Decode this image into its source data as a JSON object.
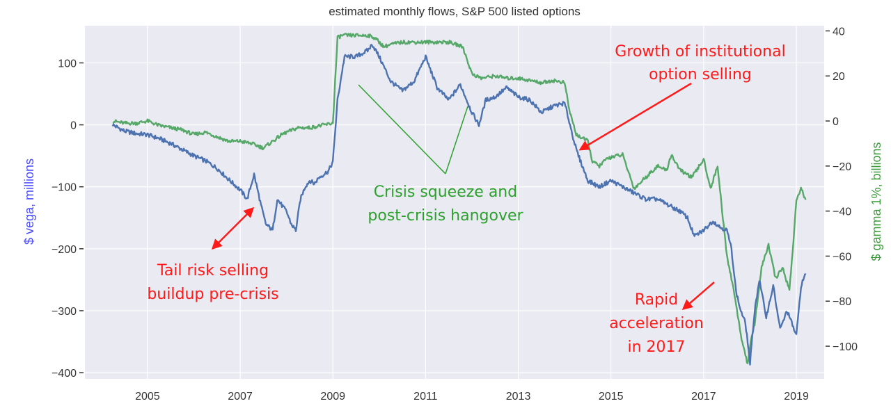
{
  "chart_data": {
    "type": "line",
    "title": "estimated monthly flows, S&P 500 listed options",
    "ylabel_left": "$ vega, millions",
    "ylabel_right": "$ gamma 1%, billions",
    "colors": {
      "vega": "#4c72b0",
      "gamma": "#55a868",
      "annotation_red": "#ff1a1a",
      "annotation_green": "#2ca02c",
      "plot_bg": "#eaeaf2"
    },
    "xlim": [
      2003.65,
      2019.6
    ],
    "ylim_left": [
      -410,
      160
    ],
    "ylim_right": [
      -114.5,
      42.3
    ],
    "x_ticks": [
      2005,
      2007,
      2009,
      2011,
      2013,
      2015,
      2017,
      2019
    ],
    "y_left_ticks": [
      100,
      0,
      -100,
      -200,
      -300,
      -400
    ],
    "y_right_ticks": [
      40,
      20,
      0,
      -20,
      -40,
      -60,
      -80,
      -100
    ],
    "grid": true,
    "series": [
      {
        "name": "$ vega, millions",
        "axis": "left",
        "x": [
          2004.25,
          2004.5,
          2004.75,
          2005.0,
          2005.25,
          2005.5,
          2005.75,
          2006.0,
          2006.25,
          2006.5,
          2006.75,
          2007.0,
          2007.15,
          2007.3,
          2007.45,
          2007.55,
          2007.7,
          2007.8,
          2007.9,
          2008.0,
          2008.1,
          2008.2,
          2008.3,
          2008.4,
          2008.5,
          2008.6,
          2008.7,
          2008.8,
          2008.9,
          2009.0,
          2009.1,
          2009.25,
          2009.5,
          2009.75,
          2009.85,
          2010.0,
          2010.25,
          2010.5,
          2010.75,
          2011.0,
          2011.25,
          2011.5,
          2011.75,
          2012.0,
          2012.15,
          2012.3,
          2012.5,
          2012.75,
          2013.0,
          2013.25,
          2013.5,
          2013.75,
          2014.0,
          2014.25,
          2014.5,
          2014.75,
          2015.0,
          2015.25,
          2015.5,
          2015.75,
          2016.0,
          2016.25,
          2016.5,
          2016.65,
          2016.8,
          2017.0,
          2017.2,
          2017.35,
          2017.5,
          2017.6,
          2017.7,
          2017.8,
          2017.9,
          2017.95,
          2018.0,
          2018.1,
          2018.2,
          2018.35,
          2018.5,
          2018.65,
          2018.8,
          2018.9,
          2019.0,
          2019.1,
          2019.2
        ],
        "values": [
          0,
          -10,
          -14,
          -16,
          -22,
          -30,
          -40,
          -50,
          -58,
          -70,
          -88,
          -105,
          -120,
          -80,
          -130,
          -160,
          -170,
          -120,
          -130,
          -140,
          -160,
          -170,
          -120,
          -100,
          -90,
          -95,
          -85,
          -80,
          -75,
          -60,
          40,
          110,
          110,
          120,
          130,
          110,
          70,
          55,
          70,
          110,
          60,
          40,
          65,
          20,
          0,
          40,
          45,
          60,
          45,
          40,
          20,
          30,
          35,
          -40,
          -90,
          -100,
          -90,
          -100,
          -110,
          -120,
          -120,
          -130,
          -140,
          -150,
          -180,
          -170,
          -155,
          -165,
          -170,
          -200,
          -270,
          -300,
          -320,
          -350,
          -385,
          -300,
          -250,
          -310,
          -260,
          -330,
          -300,
          -320,
          -340,
          -260,
          -240
        ]
      },
      {
        "name": "$ gamma 1%, billions",
        "axis": "right",
        "x": [
          2004.25,
          2004.5,
          2004.75,
          2005.0,
          2005.25,
          2005.5,
          2005.75,
          2006.0,
          2006.25,
          2006.5,
          2006.75,
          2007.0,
          2007.25,
          2007.5,
          2007.7,
          2007.9,
          2008.0,
          2008.25,
          2008.5,
          2008.75,
          2009.0,
          2009.1,
          2009.2,
          2009.5,
          2009.75,
          2009.9,
          2010.1,
          2010.25,
          2010.5,
          2011.0,
          2011.5,
          2011.8,
          2012.0,
          2012.2,
          2012.5,
          2012.75,
          2013.0,
          2013.25,
          2013.5,
          2013.75,
          2014.0,
          2014.1,
          2014.25,
          2014.5,
          2014.6,
          2014.75,
          2014.9,
          2015.0,
          2015.25,
          2015.5,
          2015.75,
          2016.0,
          2016.2,
          2016.3,
          2016.5,
          2016.75,
          2017.0,
          2017.15,
          2017.3,
          2017.4,
          2017.5,
          2017.65,
          2017.8,
          2017.95,
          2018.0,
          2018.1,
          2018.25,
          2018.4,
          2018.55,
          2018.7,
          2018.85,
          2018.95,
          2019.0,
          2019.1,
          2019.2
        ],
        "values": [
          0,
          -1,
          -1,
          0,
          -2,
          -3,
          -4,
          -6,
          -5,
          -7,
          -9,
          -9,
          -10,
          -12,
          -9,
          -6,
          -5,
          -3,
          -3,
          -2,
          -1,
          37,
          38,
          38,
          38,
          37,
          33,
          34,
          35,
          35,
          35,
          33,
          21,
          19,
          20,
          19,
          19,
          18,
          17,
          18,
          17,
          5,
          -6,
          -9,
          -18,
          -20,
          -17,
          -16,
          -15,
          -30,
          -25,
          -20,
          -22,
          -15,
          -22,
          -25,
          -17,
          -30,
          -20,
          -40,
          -60,
          -75,
          -95,
          -108,
          -100,
          -90,
          -65,
          -55,
          -70,
          -65,
          -75,
          -50,
          -35,
          -30,
          -35
        ]
      }
    ],
    "annotations": [
      {
        "lines": [
          "Growth of institutional",
          "option selling"
        ],
        "color": "red"
      },
      {
        "lines": [
          "Crisis squeeze and",
          "post-crisis hangover"
        ],
        "color": "green"
      },
      {
        "lines": [
          "Tail risk selling",
          "buildup pre-crisis"
        ],
        "color": "red"
      },
      {
        "lines": [
          "Rapid",
          "acceleration",
          "in 2017"
        ],
        "color": "red"
      }
    ]
  }
}
